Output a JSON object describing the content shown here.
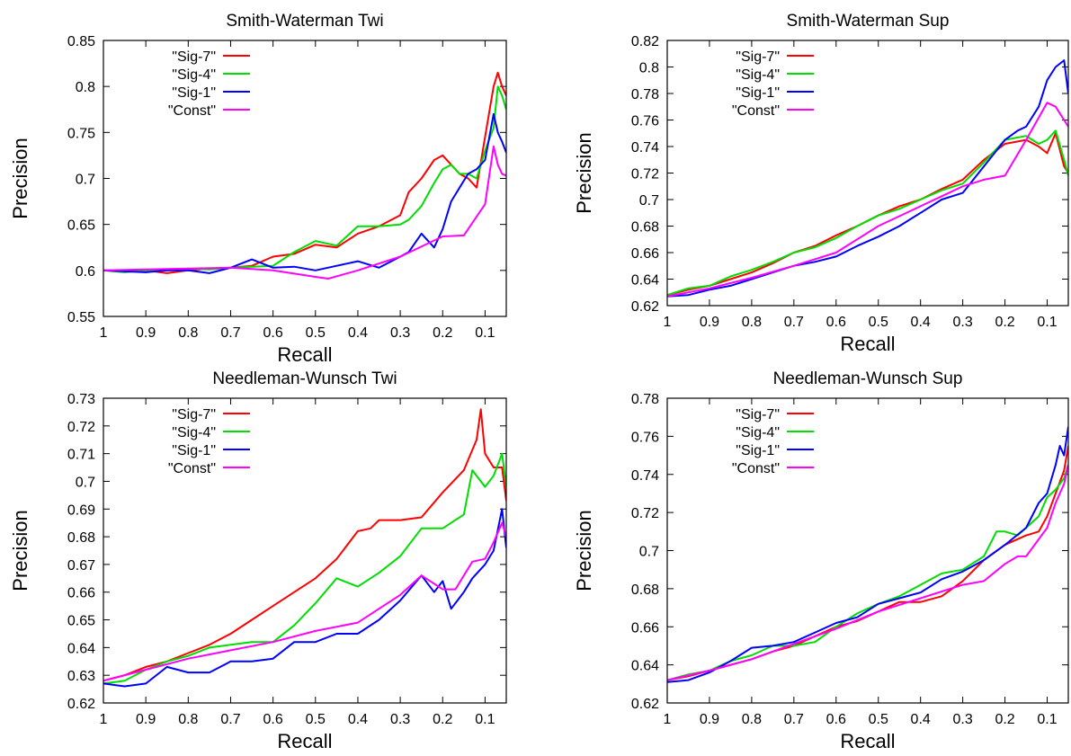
{
  "chart_data": [
    {
      "type": "line",
      "title": "Smith-Waterman Twi",
      "xlabel": "Recall",
      "ylabel": "Precision",
      "xlim": [
        1,
        0.05
      ],
      "ylim": [
        0.55,
        0.85
      ],
      "xticks": [
        "1",
        "0.9",
        "0.8",
        "0.7",
        "0.6",
        "0.5",
        "0.4",
        "0.3",
        "0.2",
        "0.1"
      ],
      "yticks": [
        "0.55",
        "0.6",
        "0.65",
        "0.7",
        "0.75",
        "0.8",
        "0.85"
      ],
      "legend_position": "top-left",
      "series": [
        {
          "name": "\"Sig-7\"",
          "color": "#ff0000",
          "x": [
            1,
            0.95,
            0.9,
            0.85,
            0.8,
            0.75,
            0.7,
            0.65,
            0.6,
            0.55,
            0.5,
            0.45,
            0.4,
            0.35,
            0.3,
            0.28,
            0.25,
            0.22,
            0.2,
            0.18,
            0.16,
            0.14,
            0.12,
            0.1,
            0.08,
            0.07,
            0.06,
            0.05
          ],
          "y": [
            0.6,
            0.6,
            0.6,
            0.597,
            0.6,
            0.602,
            0.603,
            0.605,
            0.615,
            0.618,
            0.628,
            0.625,
            0.64,
            0.648,
            0.66,
            0.685,
            0.7,
            0.72,
            0.725,
            0.715,
            0.705,
            0.7,
            0.69,
            0.745,
            0.8,
            0.815,
            0.8,
            0.79
          ]
        },
        {
          "name": "\"Sig-4\"",
          "color": "#00dd00",
          "x": [
            1,
            0.95,
            0.9,
            0.85,
            0.8,
            0.75,
            0.7,
            0.65,
            0.6,
            0.55,
            0.5,
            0.45,
            0.4,
            0.35,
            0.3,
            0.28,
            0.25,
            0.22,
            0.2,
            0.18,
            0.16,
            0.14,
            0.12,
            0.1,
            0.08,
            0.07,
            0.06,
            0.05
          ],
          "y": [
            0.6,
            0.598,
            0.6,
            0.6,
            0.602,
            0.601,
            0.603,
            0.604,
            0.605,
            0.62,
            0.632,
            0.627,
            0.648,
            0.648,
            0.65,
            0.655,
            0.67,
            0.695,
            0.71,
            0.715,
            0.705,
            0.705,
            0.7,
            0.73,
            0.755,
            0.8,
            0.79,
            0.775
          ]
        },
        {
          "name": "\"Sig-1\"",
          "color": "#0000ff",
          "x": [
            1,
            0.95,
            0.9,
            0.85,
            0.8,
            0.75,
            0.7,
            0.65,
            0.6,
            0.55,
            0.5,
            0.45,
            0.4,
            0.35,
            0.3,
            0.28,
            0.25,
            0.22,
            0.2,
            0.18,
            0.16,
            0.14,
            0.12,
            0.1,
            0.08,
            0.07,
            0.06,
            0.05
          ],
          "y": [
            0.6,
            0.599,
            0.598,
            0.6,
            0.6,
            0.597,
            0.603,
            0.612,
            0.603,
            0.604,
            0.6,
            0.605,
            0.61,
            0.603,
            0.615,
            0.62,
            0.64,
            0.625,
            0.645,
            0.675,
            0.69,
            0.705,
            0.71,
            0.72,
            0.77,
            0.75,
            0.74,
            0.728
          ]
        },
        {
          "name": "\"Const\"",
          "color": "#ff00ff",
          "x": [
            1,
            0.9,
            0.8,
            0.7,
            0.6,
            0.5,
            0.47,
            0.4,
            0.3,
            0.2,
            0.15,
            0.1,
            0.08,
            0.07,
            0.06,
            0.05
          ],
          "y": [
            0.6,
            0.601,
            0.602,
            0.603,
            0.6,
            0.593,
            0.591,
            0.6,
            0.615,
            0.637,
            0.638,
            0.672,
            0.735,
            0.715,
            0.705,
            0.703
          ]
        }
      ]
    },
    {
      "type": "line",
      "title": "Smith-Waterman Sup",
      "xlabel": "Recall",
      "ylabel": "Precision",
      "xlim": [
        1,
        0.05
      ],
      "ylim": [
        0.62,
        0.82
      ],
      "xticks": [
        "1",
        "0.9",
        "0.8",
        "0.7",
        "0.6",
        "0.5",
        "0.4",
        "0.3",
        "0.2",
        "0.1"
      ],
      "yticks": [
        "0.62",
        "0.64",
        "0.66",
        "0.68",
        "0.7",
        "0.72",
        "0.74",
        "0.76",
        "0.78",
        "0.8",
        "0.82"
      ],
      "legend_position": "top-left",
      "series": [
        {
          "name": "\"Sig-7\"",
          "color": "#ff0000",
          "x": [
            1,
            0.95,
            0.9,
            0.85,
            0.8,
            0.75,
            0.7,
            0.65,
            0.6,
            0.55,
            0.5,
            0.45,
            0.4,
            0.35,
            0.3,
            0.25,
            0.2,
            0.15,
            0.12,
            0.1,
            0.08,
            0.06,
            0.05
          ],
          "y": [
            0.628,
            0.632,
            0.635,
            0.64,
            0.645,
            0.652,
            0.66,
            0.665,
            0.673,
            0.68,
            0.688,
            0.695,
            0.7,
            0.708,
            0.715,
            0.73,
            0.742,
            0.745,
            0.74,
            0.735,
            0.75,
            0.725,
            0.72
          ]
        },
        {
          "name": "\"Sig-4\"",
          "color": "#00dd00",
          "x": [
            1,
            0.95,
            0.9,
            0.85,
            0.8,
            0.75,
            0.7,
            0.65,
            0.6,
            0.55,
            0.5,
            0.45,
            0.4,
            0.35,
            0.3,
            0.25,
            0.2,
            0.15,
            0.12,
            0.1,
            0.08,
            0.06,
            0.05
          ],
          "y": [
            0.628,
            0.633,
            0.635,
            0.642,
            0.647,
            0.653,
            0.66,
            0.664,
            0.671,
            0.68,
            0.688,
            0.693,
            0.7,
            0.707,
            0.712,
            0.728,
            0.745,
            0.748,
            0.742,
            0.745,
            0.752,
            0.73,
            0.718
          ]
        },
        {
          "name": "\"Sig-1\"",
          "color": "#0000ff",
          "x": [
            1,
            0.95,
            0.9,
            0.85,
            0.8,
            0.75,
            0.7,
            0.65,
            0.6,
            0.55,
            0.5,
            0.45,
            0.4,
            0.35,
            0.3,
            0.25,
            0.2,
            0.17,
            0.15,
            0.12,
            0.1,
            0.08,
            0.06,
            0.05
          ],
          "y": [
            0.627,
            0.628,
            0.632,
            0.635,
            0.64,
            0.645,
            0.65,
            0.653,
            0.657,
            0.665,
            0.672,
            0.68,
            0.69,
            0.7,
            0.705,
            0.725,
            0.745,
            0.752,
            0.755,
            0.77,
            0.79,
            0.8,
            0.805,
            0.78
          ]
        },
        {
          "name": "\"Const\"",
          "color": "#ff00ff",
          "x": [
            1,
            0.9,
            0.8,
            0.7,
            0.6,
            0.5,
            0.4,
            0.3,
            0.25,
            0.2,
            0.15,
            0.1,
            0.08,
            0.06,
            0.05
          ],
          "y": [
            0.627,
            0.633,
            0.641,
            0.65,
            0.66,
            0.68,
            0.695,
            0.71,
            0.715,
            0.718,
            0.745,
            0.773,
            0.77,
            0.76,
            0.755
          ]
        }
      ]
    },
    {
      "type": "line",
      "title": "Needleman-Wunsch Twi",
      "xlabel": "Recall",
      "ylabel": "Precision",
      "xlim": [
        1,
        0.05
      ],
      "ylim": [
        0.62,
        0.73
      ],
      "xticks": [
        "1",
        "0.9",
        "0.8",
        "0.7",
        "0.6",
        "0.5",
        "0.4",
        "0.3",
        "0.2",
        "0.1"
      ],
      "yticks": [
        "0.62",
        "0.63",
        "0.64",
        "0.65",
        "0.66",
        "0.67",
        "0.68",
        "0.69",
        "0.7",
        "0.71",
        "0.72",
        "0.73"
      ],
      "legend_position": "top-left",
      "series": [
        {
          "name": "\"Sig-7\"",
          "color": "#ff0000",
          "x": [
            1,
            0.95,
            0.9,
            0.85,
            0.8,
            0.75,
            0.7,
            0.65,
            0.6,
            0.55,
            0.5,
            0.45,
            0.4,
            0.37,
            0.35,
            0.3,
            0.25,
            0.2,
            0.15,
            0.12,
            0.11,
            0.1,
            0.08,
            0.06,
            0.05
          ],
          "y": [
            0.628,
            0.63,
            0.633,
            0.635,
            0.638,
            0.641,
            0.645,
            0.65,
            0.655,
            0.66,
            0.665,
            0.672,
            0.682,
            0.683,
            0.686,
            0.686,
            0.687,
            0.696,
            0.704,
            0.715,
            0.726,
            0.71,
            0.705,
            0.705,
            0.693
          ]
        },
        {
          "name": "\"Sig-4\"",
          "color": "#00dd00",
          "x": [
            1,
            0.95,
            0.9,
            0.85,
            0.8,
            0.75,
            0.7,
            0.65,
            0.6,
            0.55,
            0.5,
            0.45,
            0.4,
            0.35,
            0.3,
            0.25,
            0.2,
            0.15,
            0.13,
            0.1,
            0.08,
            0.06,
            0.05
          ],
          "y": [
            0.627,
            0.628,
            0.632,
            0.635,
            0.637,
            0.64,
            0.641,
            0.642,
            0.642,
            0.648,
            0.656,
            0.665,
            0.662,
            0.667,
            0.673,
            0.683,
            0.683,
            0.688,
            0.704,
            0.698,
            0.702,
            0.71,
            0.698
          ]
        },
        {
          "name": "\"Sig-1\"",
          "color": "#0000ff",
          "x": [
            1,
            0.95,
            0.9,
            0.85,
            0.8,
            0.75,
            0.7,
            0.65,
            0.6,
            0.55,
            0.5,
            0.45,
            0.4,
            0.35,
            0.3,
            0.25,
            0.22,
            0.2,
            0.18,
            0.16,
            0.15,
            0.13,
            0.1,
            0.08,
            0.06,
            0.05
          ],
          "y": [
            0.627,
            0.626,
            0.627,
            0.633,
            0.631,
            0.631,
            0.635,
            0.635,
            0.636,
            0.642,
            0.642,
            0.645,
            0.645,
            0.65,
            0.657,
            0.666,
            0.66,
            0.664,
            0.654,
            0.658,
            0.66,
            0.665,
            0.67,
            0.675,
            0.69,
            0.676
          ]
        },
        {
          "name": "\"Const\"",
          "color": "#ff00ff",
          "x": [
            1,
            0.9,
            0.8,
            0.7,
            0.6,
            0.5,
            0.4,
            0.3,
            0.25,
            0.2,
            0.17,
            0.13,
            0.1,
            0.08,
            0.06,
            0.05
          ],
          "y": [
            0.628,
            0.632,
            0.636,
            0.639,
            0.642,
            0.646,
            0.649,
            0.659,
            0.666,
            0.661,
            0.661,
            0.671,
            0.672,
            0.678,
            0.685,
            0.68
          ]
        }
      ]
    },
    {
      "type": "line",
      "title": "Needleman-Wunsch Sup",
      "xlabel": "Recall",
      "ylabel": "Precision",
      "xlim": [
        1,
        0.05
      ],
      "ylim": [
        0.62,
        0.78
      ],
      "xticks": [
        "1",
        "0.9",
        "0.8",
        "0.7",
        "0.6",
        "0.5",
        "0.4",
        "0.3",
        "0.2",
        "0.1"
      ],
      "yticks": [
        "0.62",
        "0.64",
        "0.66",
        "0.68",
        "0.7",
        "0.72",
        "0.74",
        "0.76",
        "0.78"
      ],
      "legend_position": "top-left",
      "series": [
        {
          "name": "\"Sig-7\"",
          "color": "#ff0000",
          "x": [
            1,
            0.95,
            0.9,
            0.85,
            0.8,
            0.75,
            0.7,
            0.65,
            0.6,
            0.55,
            0.5,
            0.45,
            0.4,
            0.35,
            0.3,
            0.25,
            0.2,
            0.15,
            0.12,
            0.1,
            0.08,
            0.06,
            0.05
          ],
          "y": [
            0.632,
            0.634,
            0.637,
            0.64,
            0.643,
            0.647,
            0.65,
            0.655,
            0.66,
            0.663,
            0.668,
            0.673,
            0.673,
            0.676,
            0.684,
            0.695,
            0.703,
            0.708,
            0.71,
            0.718,
            0.73,
            0.742,
            0.755
          ]
        },
        {
          "name": "\"Sig-4\"",
          "color": "#00dd00",
          "x": [
            1,
            0.95,
            0.9,
            0.85,
            0.8,
            0.75,
            0.7,
            0.65,
            0.6,
            0.55,
            0.5,
            0.45,
            0.4,
            0.35,
            0.3,
            0.25,
            0.22,
            0.2,
            0.17,
            0.15,
            0.12,
            0.1,
            0.08,
            0.06,
            0.05
          ],
          "y": [
            0.632,
            0.635,
            0.637,
            0.642,
            0.645,
            0.65,
            0.65,
            0.652,
            0.66,
            0.667,
            0.672,
            0.676,
            0.682,
            0.688,
            0.69,
            0.697,
            0.71,
            0.71,
            0.708,
            0.712,
            0.718,
            0.728,
            0.732,
            0.738,
            0.745
          ]
        },
        {
          "name": "\"Sig-1\"",
          "color": "#0000ff",
          "x": [
            1,
            0.95,
            0.9,
            0.85,
            0.8,
            0.75,
            0.7,
            0.65,
            0.6,
            0.55,
            0.5,
            0.45,
            0.4,
            0.35,
            0.3,
            0.25,
            0.2,
            0.15,
            0.12,
            0.1,
            0.08,
            0.07,
            0.06,
            0.05
          ],
          "y": [
            0.631,
            0.632,
            0.636,
            0.642,
            0.649,
            0.65,
            0.652,
            0.657,
            0.662,
            0.665,
            0.672,
            0.675,
            0.678,
            0.685,
            0.689,
            0.695,
            0.703,
            0.712,
            0.725,
            0.73,
            0.745,
            0.755,
            0.75,
            0.765
          ]
        },
        {
          "name": "\"Const\"",
          "color": "#ff00ff",
          "x": [
            1,
            0.9,
            0.8,
            0.7,
            0.6,
            0.5,
            0.4,
            0.3,
            0.25,
            0.2,
            0.17,
            0.15,
            0.1,
            0.08,
            0.06,
            0.05
          ],
          "y": [
            0.632,
            0.637,
            0.643,
            0.651,
            0.659,
            0.668,
            0.675,
            0.682,
            0.684,
            0.693,
            0.697,
            0.697,
            0.712,
            0.725,
            0.735,
            0.745
          ]
        }
      ]
    }
  ]
}
